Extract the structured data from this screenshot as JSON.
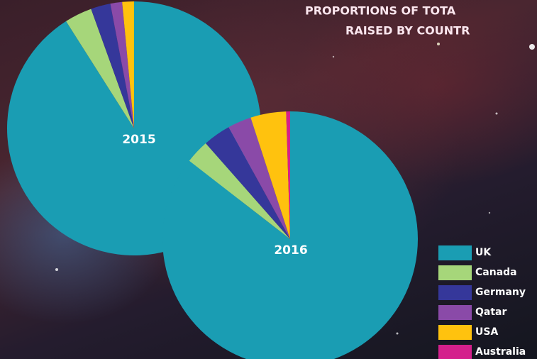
{
  "chart_data": {
    "type": "pie",
    "title": [
      "PROPORTIONS OF TOTA",
      "RAISED BY COUNTR"
    ],
    "categories": [
      "UK",
      "Canada",
      "Germany",
      "Qatar",
      "USA",
      "Australia"
    ],
    "colors": [
      "#1a9db3",
      "#a6d67a",
      "#35379a",
      "#8a4aa8",
      "#ffc20e",
      "#d4208c"
    ],
    "series": [
      {
        "name": "2015",
        "values": [
          91,
          3.5,
          2.5,
          1.5,
          1.5,
          0
        ]
      },
      {
        "name": "2016",
        "values": [
          85.5,
          3,
          3.5,
          3,
          4.5,
          0.5
        ]
      }
    ]
  }
}
